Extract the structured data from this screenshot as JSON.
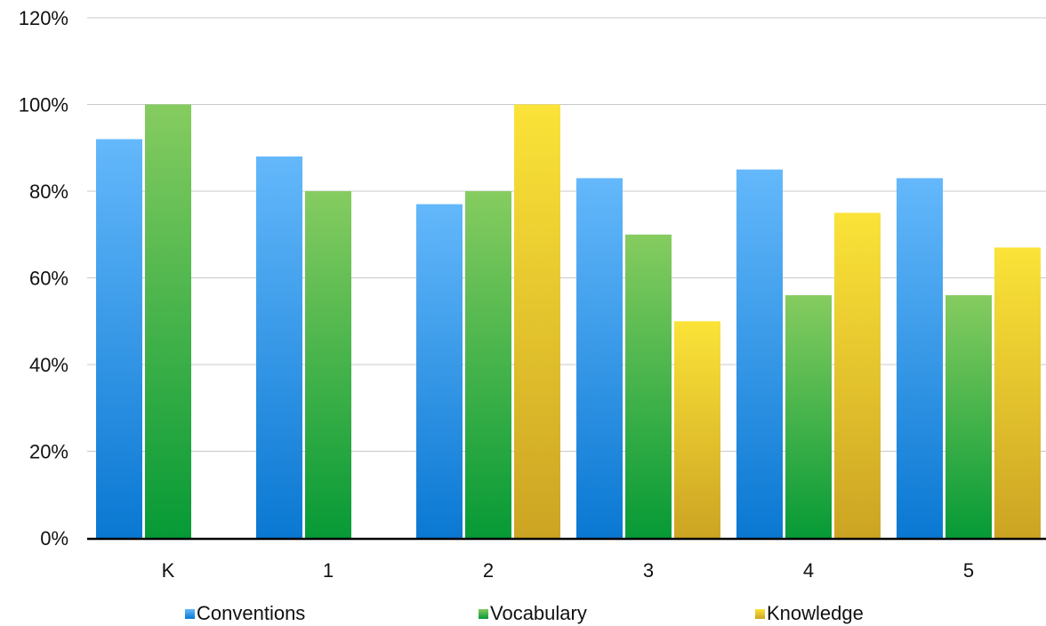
{
  "chart_data": {
    "type": "bar",
    "title": "",
    "xlabel": "",
    "ylabel": "",
    "categories": [
      "K",
      "1",
      "2",
      "3",
      "4",
      "5"
    ],
    "series": [
      {
        "name": "Conventions",
        "values": [
          92,
          88,
          77,
          83,
          85,
          83
        ],
        "color": "#2f8fe0"
      },
      {
        "name": "Vocabulary",
        "values": [
          100,
          80,
          80,
          70,
          56,
          56
        ],
        "color": "#3aa63a"
      },
      {
        "name": "Knowledge",
        "values": [
          null,
          null,
          100,
          50,
          75,
          67
        ],
        "color": "#efc82a"
      }
    ],
    "ylim": [
      0,
      120
    ],
    "yticks": [
      0,
      20,
      40,
      60,
      80,
      100,
      120
    ],
    "ytick_labels": [
      "0%",
      "20%",
      "40%",
      "60%",
      "80%",
      "100%",
      "120%"
    ],
    "grid": true,
    "legend_position": "bottom"
  },
  "gradients": {
    "Conventions": {
      "top": "#64b8fb",
      "bottom": "#0a78d2"
    },
    "Vocabulary": {
      "top": "#86cc60",
      "bottom": "#069a36"
    },
    "Knowledge": {
      "top": "#fbe338",
      "bottom": "#cca423"
    }
  }
}
